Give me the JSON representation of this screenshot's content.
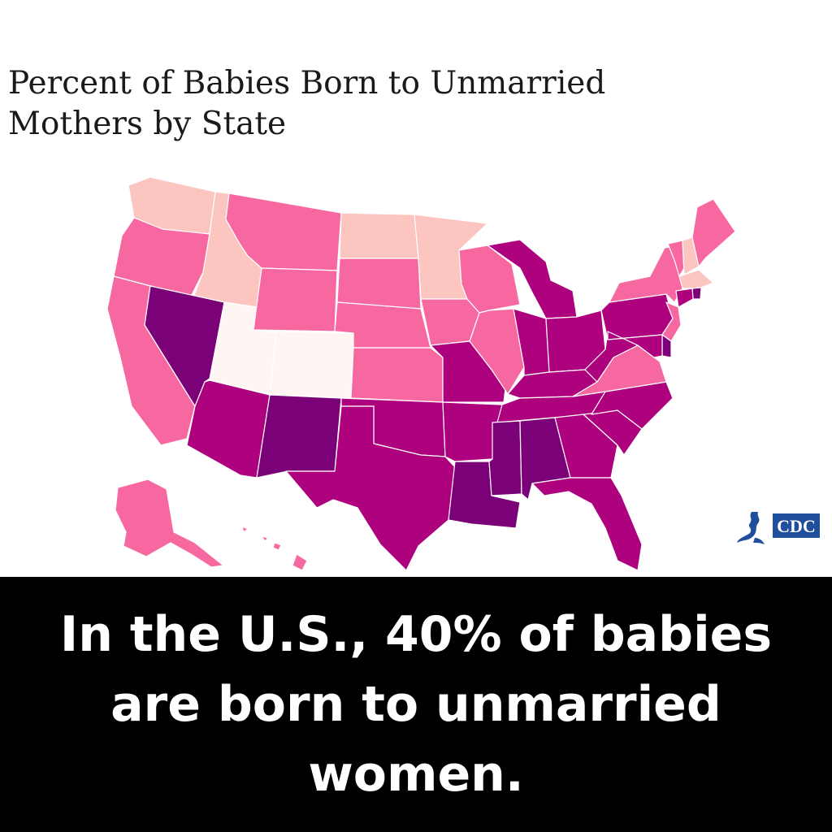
{
  "title": "Percent of Babies Born to Unmarried Mothers by State",
  "caption": "In the U.S., 40% of babies are born to unmarried women.",
  "logo": {
    "text": "CDC",
    "icon": "hhs-eagle-icon",
    "color": "#1f4e9c"
  },
  "legend_colors": {
    "lowest": "#fff5f3",
    "low": "#fcc5c0",
    "medium": "#f768a1",
    "high": "#ae017e",
    "highest": "#7a0177"
  },
  "states": [
    {
      "abbr": "WA",
      "level": "low"
    },
    {
      "abbr": "OR",
      "level": "medium"
    },
    {
      "abbr": "CA",
      "level": "medium"
    },
    {
      "abbr": "ID",
      "level": "low"
    },
    {
      "abbr": "NV",
      "level": "highest"
    },
    {
      "abbr": "UT",
      "level": "lowest"
    },
    {
      "abbr": "AZ",
      "level": "high"
    },
    {
      "abbr": "MT",
      "level": "medium"
    },
    {
      "abbr": "WY",
      "level": "medium"
    },
    {
      "abbr": "CO",
      "level": "lowest"
    },
    {
      "abbr": "NM",
      "level": "highest"
    },
    {
      "abbr": "ND",
      "level": "low"
    },
    {
      "abbr": "SD",
      "level": "medium"
    },
    {
      "abbr": "NE",
      "level": "medium"
    },
    {
      "abbr": "KS",
      "level": "medium"
    },
    {
      "abbr": "OK",
      "level": "high"
    },
    {
      "abbr": "TX",
      "level": "high"
    },
    {
      "abbr": "MN",
      "level": "low"
    },
    {
      "abbr": "IA",
      "level": "medium"
    },
    {
      "abbr": "MO",
      "level": "high"
    },
    {
      "abbr": "AR",
      "level": "high"
    },
    {
      "abbr": "LA",
      "level": "highest"
    },
    {
      "abbr": "WI",
      "level": "medium"
    },
    {
      "abbr": "IL",
      "level": "medium"
    },
    {
      "abbr": "MI",
      "level": "high"
    },
    {
      "abbr": "IN",
      "level": "high"
    },
    {
      "abbr": "OH",
      "level": "high"
    },
    {
      "abbr": "KY",
      "level": "high"
    },
    {
      "abbr": "TN",
      "level": "high"
    },
    {
      "abbr": "MS",
      "level": "highest"
    },
    {
      "abbr": "AL",
      "level": "highest"
    },
    {
      "abbr": "GA",
      "level": "high"
    },
    {
      "abbr": "FL",
      "level": "high"
    },
    {
      "abbr": "SC",
      "level": "high"
    },
    {
      "abbr": "NC",
      "level": "high"
    },
    {
      "abbr": "VA",
      "level": "medium"
    },
    {
      "abbr": "WV",
      "level": "high"
    },
    {
      "abbr": "PA",
      "level": "high"
    },
    {
      "abbr": "NY",
      "level": "medium"
    },
    {
      "abbr": "VT",
      "level": "medium"
    },
    {
      "abbr": "NH",
      "level": "low"
    },
    {
      "abbr": "ME",
      "level": "medium"
    },
    {
      "abbr": "MA",
      "level": "low"
    },
    {
      "abbr": "RI",
      "level": "highest"
    },
    {
      "abbr": "CT",
      "level": "high"
    },
    {
      "abbr": "NJ",
      "level": "medium"
    },
    {
      "abbr": "DE",
      "level": "highest"
    },
    {
      "abbr": "MD",
      "level": "high"
    },
    {
      "abbr": "AK",
      "level": "medium"
    },
    {
      "abbr": "HI",
      "level": "medium"
    }
  ]
}
